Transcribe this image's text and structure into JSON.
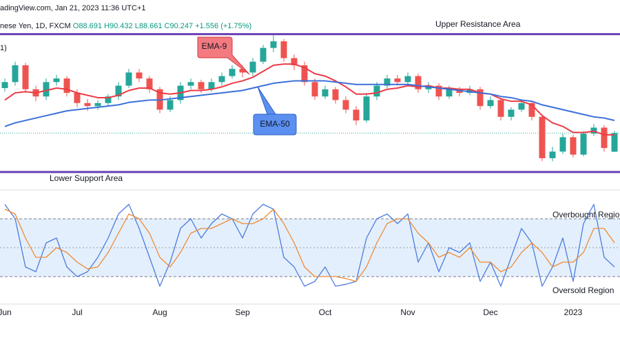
{
  "header": {
    "source": "adingView.com, Jan 21, 2023 11:36 UTC+1",
    "symbol": "nese Yen, 1D, FXCM",
    "open": "O88.691",
    "high": "H90.432",
    "low": "L88.661",
    "close": "C90.247",
    "change": "+1.556 (+1.75%)",
    "legend_fragment": "1)"
  },
  "chart_data": [
    {
      "type": "candlestick",
      "categories": [
        "Jun",
        null,
        null,
        null,
        null,
        null,
        null,
        "Jul",
        null,
        null,
        null,
        null,
        null,
        null,
        null,
        "Aug",
        null,
        null,
        null,
        null,
        null,
        null,
        null,
        "Sep",
        null,
        null,
        null,
        null,
        null,
        null,
        null,
        "Oct",
        null,
        null,
        null,
        null,
        null,
        null,
        null,
        "Nov",
        null,
        null,
        null,
        null,
        null,
        null,
        null,
        "Dec",
        null,
        null,
        null,
        null,
        null,
        null,
        null,
        "2023",
        null,
        null,
        null,
        null
      ],
      "open": [
        94.0,
        94.5,
        95.9,
        93.9,
        93.3,
        94.5,
        94.8,
        93.6,
        92.75,
        92.5,
        92.75,
        93.3,
        94.2,
        95.3,
        94.8,
        93.9,
        92.2,
        93.0,
        94.2,
        94.5,
        93.9,
        94.5,
        95.0,
        95.6,
        95.3,
        96.2,
        97.35,
        97.9,
        96.5,
        95.9,
        94.5,
        93.3,
        93.9,
        93.0,
        92.2,
        91.3,
        93.3,
        94.2,
        94.8,
        94.5,
        95.0,
        93.9,
        94.2,
        93.3,
        93.9,
        93.6,
        93.9,
        92.5,
        93.0,
        91.6,
        92.2,
        92.75,
        91.6,
        88.15,
        88.7,
        89.9,
        88.45,
        90.2,
        90.7,
        88.691
      ],
      "high": [
        94.8,
        96.2,
        96.1,
        94.2,
        94.8,
        95.1,
        95.0,
        93.9,
        93.1,
        93.0,
        93.5,
        94.5,
        95.6,
        95.6,
        95.0,
        94.1,
        93.3,
        94.5,
        94.8,
        94.7,
        94.8,
        95.3,
        95.9,
        95.9,
        96.5,
        97.6,
        98.4,
        98.1,
        96.8,
        96.2,
        94.8,
        94.2,
        94.1,
        93.3,
        92.5,
        93.6,
        94.5,
        95.1,
        95.1,
        95.3,
        95.2,
        94.5,
        94.4,
        94.2,
        94.1,
        94.2,
        94.1,
        93.3,
        93.2,
        92.4,
        93.0,
        92.9,
        91.8,
        89.1,
        90.2,
        90.1,
        90.4,
        91.0,
        90.9,
        90.432
      ],
      "low": [
        93.7,
        94.2,
        93.6,
        92.9,
        93.0,
        94.2,
        93.3,
        92.4,
        92.1,
        92.2,
        92.5,
        93.0,
        94.0,
        94.5,
        93.6,
        91.9,
        92.0,
        92.7,
        93.9,
        93.6,
        93.7,
        94.2,
        94.8,
        94.9,
        95.0,
        96.0,
        97.0,
        96.2,
        95.5,
        94.2,
        93.0,
        93.1,
        92.7,
        91.9,
        90.9,
        91.1,
        93.0,
        94.0,
        94.2,
        94.3,
        93.6,
        93.6,
        93.0,
        93.1,
        93.3,
        93.4,
        92.2,
        92.3,
        91.3,
        91.3,
        92.0,
        91.3,
        87.9,
        87.9,
        88.5,
        88.2,
        88.3,
        90.0,
        88.7,
        88.661
      ],
      "close": [
        94.5,
        95.9,
        93.9,
        93.3,
        94.5,
        94.8,
        93.6,
        92.75,
        92.5,
        92.75,
        93.3,
        94.2,
        95.3,
        94.8,
        93.9,
        92.2,
        93.0,
        94.2,
        94.5,
        93.9,
        94.5,
        95.0,
        95.6,
        95.3,
        96.2,
        97.35,
        97.9,
        96.5,
        95.9,
        94.5,
        93.3,
        93.9,
        93.0,
        92.2,
        91.3,
        93.3,
        94.2,
        94.8,
        94.5,
        95.0,
        93.9,
        94.2,
        93.3,
        93.9,
        93.6,
        93.9,
        92.5,
        93.0,
        91.6,
        92.2,
        92.75,
        91.6,
        88.15,
        88.7,
        89.9,
        88.45,
        90.2,
        90.7,
        89.0,
        90.247
      ],
      "up_color": "#26a69a",
      "down_color": "#ef5350",
      "series": [
        {
          "name": "EMA-9",
          "color": "#ec3b45",
          "values": [
            93.0,
            93.6,
            93.7,
            93.6,
            93.8,
            94.0,
            93.9,
            93.6,
            93.4,
            93.2,
            93.2,
            93.4,
            93.8,
            94.0,
            94.0,
            93.6,
            93.5,
            93.6,
            93.8,
            93.8,
            93.9,
            94.1,
            94.4,
            94.6,
            94.9,
            95.4,
            95.9,
            96.0,
            96.0,
            95.7,
            95.2,
            95.0,
            94.6,
            94.1,
            93.5,
            93.5,
            93.6,
            93.9,
            94.0,
            94.2,
            94.1,
            94.2,
            94.0,
            94.0,
            93.9,
            93.9,
            93.6,
            93.5,
            93.1,
            92.9,
            92.9,
            92.6,
            91.7,
            91.1,
            90.8,
            90.3,
            90.3,
            90.4,
            90.1,
            90.1
          ]
        },
        {
          "name": "EMA-50",
          "color": "#3b6fd9",
          "values": [
            90.8,
            91.1,
            91.3,
            91.5,
            91.7,
            91.9,
            92.1,
            92.2,
            92.3,
            92.4,
            92.5,
            92.6,
            92.8,
            92.9,
            93.0,
            93.0,
            93.1,
            93.2,
            93.3,
            93.4,
            93.5,
            93.6,
            93.7,
            93.8,
            94.0,
            94.2,
            94.4,
            94.5,
            94.6,
            94.6,
            94.6,
            94.6,
            94.5,
            94.4,
            94.3,
            94.3,
            94.3,
            94.3,
            94.3,
            94.3,
            94.2,
            94.1,
            94.0,
            93.9,
            93.8,
            93.7,
            93.6,
            93.5,
            93.3,
            93.2,
            93.0,
            92.9,
            92.6,
            92.4,
            92.2,
            92.0,
            91.8,
            91.6,
            91.5,
            91.3
          ]
        }
      ],
      "levels": [
        {
          "value": 98.5,
          "label": "Upper Resistance Area",
          "color": "#6a3fb5"
        },
        {
          "value": 87.0,
          "label": "Lower Support Area",
          "color": "#6a3fb5"
        }
      ],
      "ylim": [
        85.85,
        100.2
      ]
    },
    {
      "type": "line",
      "series": [
        {
          "color": "#4b7be0",
          "values": [
            95,
            80,
            30,
            25,
            55,
            60,
            30,
            20,
            25,
            40,
            60,
            85,
            95,
            70,
            40,
            10,
            35,
            70,
            80,
            60,
            75,
            85,
            80,
            60,
            85,
            95,
            90,
            40,
            30,
            10,
            15,
            30,
            10,
            12,
            15,
            60,
            80,
            85,
            75,
            85,
            35,
            55,
            25,
            50,
            45,
            55,
            15,
            35,
            10,
            40,
            70,
            55,
            10,
            30,
            60,
            15,
            75,
            95,
            40,
            30
          ]
        },
        {
          "color": "#f08a35",
          "values": [
            90,
            85,
            60,
            40,
            40,
            50,
            45,
            35,
            28,
            30,
            45,
            65,
            85,
            80,
            65,
            40,
            30,
            45,
            65,
            70,
            70,
            75,
            80,
            75,
            75,
            80,
            90,
            75,
            55,
            30,
            20,
            20,
            20,
            18,
            15,
            30,
            55,
            75,
            80,
            80,
            65,
            55,
            40,
            45,
            40,
            50,
            35,
            35,
            25,
            30,
            45,
            55,
            45,
            30,
            35,
            35,
            45,
            70,
            70,
            55
          ]
        }
      ],
      "levels": [
        {
          "value": 80,
          "label": "Overbought Region"
        },
        {
          "value": 20,
          "label": "Oversold Region"
        }
      ],
      "mid_level": 50,
      "band_color": "#e3effc",
      "ylim": [
        0,
        100
      ]
    }
  ]
}
